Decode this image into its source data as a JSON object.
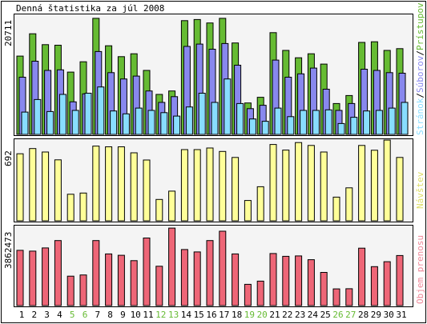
{
  "title": "Denná štatistika za júl 2008",
  "colors": {
    "hits": "#66bb33",
    "files": "#8888ee",
    "pages": "#88ddff",
    "visits": "#ffff99",
    "volume": "#ee6677",
    "weekend_label": "#66bb33",
    "weekday_label": "#000000"
  },
  "legend": {
    "pages": "Stránok",
    "sep1": "/",
    "files": "Súborov",
    "sep2": "/",
    "hits": "Prístupov",
    "visits": "Návštev",
    "volume": "Objem prenosu"
  },
  "chart_data": [
    {
      "type": "bar",
      "title": "Denná štatistika za júl 2008",
      "categories": [
        "1",
        "2",
        "3",
        "4",
        "5",
        "6",
        "7",
        "8",
        "9",
        "10",
        "11",
        "12",
        "13",
        "14",
        "15",
        "16",
        "17",
        "18",
        "19",
        "20",
        "21",
        "22",
        "23",
        "24",
        "25",
        "26",
        "27",
        "28",
        "29",
        "30",
        "31"
      ],
      "ymax_label": "20711",
      "ylim": [
        0,
        20711
      ],
      "series": [
        {
          "name": "Prístupov",
          "values": [
            13700,
            17600,
            15700,
            15600,
            10900,
            12700,
            20300,
            15500,
            13600,
            14100,
            11200,
            7000,
            7600,
            19900,
            20100,
            19500,
            20300,
            16000,
            5500,
            6500,
            17800,
            14700,
            13400,
            14100,
            12300,
            5400,
            6800,
            16100,
            16200,
            14700,
            15000
          ]
        },
        {
          "name": "Súborov",
          "values": [
            10000,
            12800,
            11200,
            11300,
            5700,
            7100,
            14500,
            10800,
            9700,
            10200,
            7600,
            5600,
            6600,
            15400,
            15800,
            14900,
            15900,
            12100,
            4500,
            5100,
            13000,
            10000,
            10600,
            11600,
            7900,
            4200,
            5400,
            11400,
            11200,
            10800,
            10700
          ]
        },
        {
          "name": "Stránok",
          "values": [
            3900,
            6100,
            4000,
            7000,
            4200,
            7200,
            8300,
            4100,
            3600,
            4600,
            4200,
            3800,
            3200,
            4800,
            7200,
            5600,
            9700,
            5400,
            2700,
            2300,
            4600,
            3100,
            4200,
            4200,
            4300,
            1900,
            3000,
            4100,
            4200,
            4600,
            5600
          ]
        }
      ]
    },
    {
      "type": "bar",
      "categories": [
        "1",
        "2",
        "3",
        "4",
        "5",
        "6",
        "7",
        "8",
        "9",
        "10",
        "11",
        "12",
        "13",
        "14",
        "15",
        "16",
        "17",
        "18",
        "19",
        "20",
        "21",
        "22",
        "23",
        "24",
        "25",
        "26",
        "27",
        "28",
        "29",
        "30",
        "31"
      ],
      "ymax_label": "692",
      "ylim": [
        0,
        692
      ],
      "series": [
        {
          "name": "Návštev",
          "values": [
            580,
            625,
            595,
            527,
            230,
            240,
            646,
            640,
            640,
            588,
            526,
            185,
            257,
            616,
            616,
            630,
            600,
            548,
            176,
            295,
            660,
            612,
            677,
            652,
            595,
            205,
            285,
            652,
            610,
            698,
            548
          ]
        }
      ]
    },
    {
      "type": "bar",
      "categories": [
        "1",
        "2",
        "3",
        "4",
        "5",
        "6",
        "7",
        "8",
        "9",
        "10",
        "11",
        "12",
        "13",
        "14",
        "15",
        "16",
        "17",
        "18",
        "19",
        "20",
        "21",
        "22",
        "23",
        "24",
        "25",
        "26",
        "27",
        "28",
        "29",
        "30",
        "31"
      ],
      "ymax_label": "3862473",
      "ylim": [
        0,
        3862473
      ],
      "series": [
        {
          "name": "Objem prenosu",
          "values": [
            2780000,
            2740000,
            2900000,
            3270000,
            1480000,
            1540000,
            3270000,
            2600000,
            2530000,
            2260000,
            3400000,
            1980000,
            3900000,
            2820000,
            2700000,
            3270000,
            3740000,
            2600000,
            1070000,
            1230000,
            2620000,
            2480000,
            2500000,
            2310000,
            1670000,
            840000,
            850000,
            2890000,
            1960000,
            2210000,
            2520000
          ]
        }
      ]
    }
  ],
  "weekend_days": [
    "5",
    "6",
    "12",
    "13",
    "19",
    "20",
    "26",
    "27"
  ]
}
